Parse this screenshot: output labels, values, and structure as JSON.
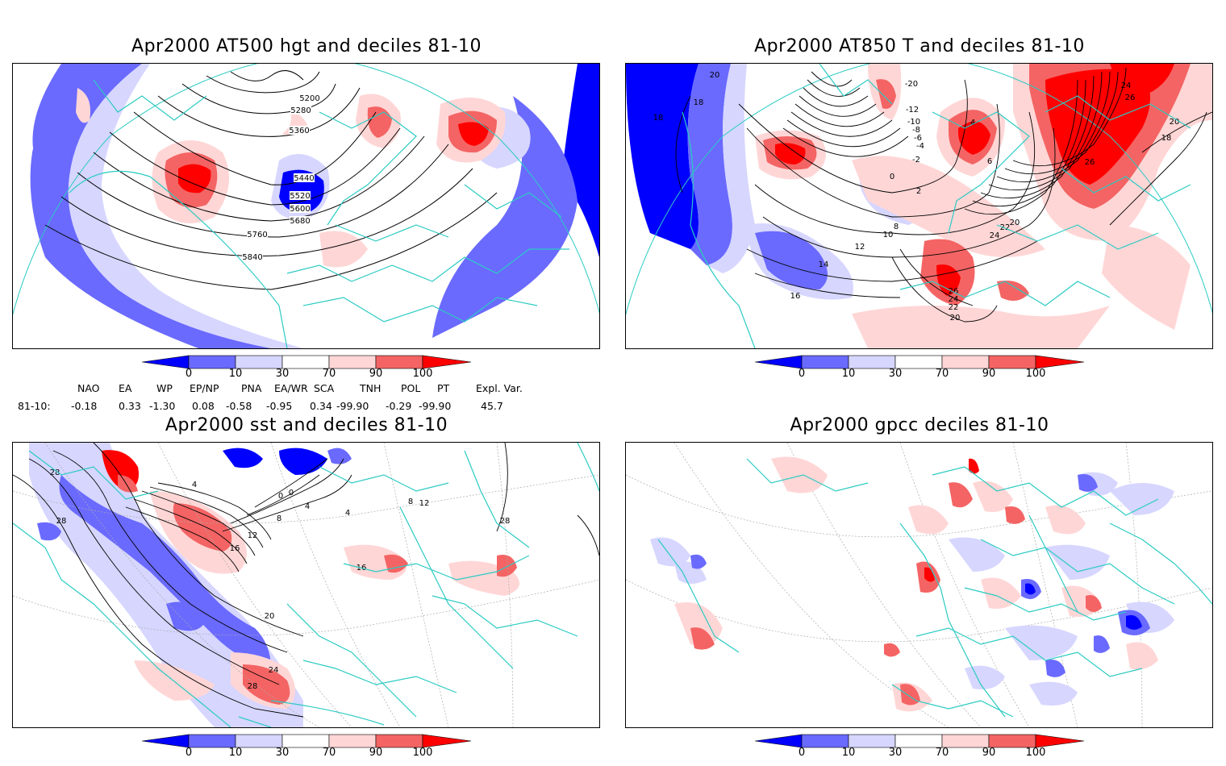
{
  "panels": [
    {
      "title": "Apr2000 AT500 hgt and deciles 81-10",
      "contour_labels": [
        "5200",
        "5280",
        "5360",
        "5440",
        "5520",
        "5600",
        "5680",
        "5760",
        "5840"
      ]
    },
    {
      "title": "Apr2000 AT850 T and deciles 81-10",
      "contour_labels": [
        "20",
        "18",
        "18",
        "-20",
        "-12",
        "-10",
        "-8",
        "-6",
        "-4",
        "-2",
        "0",
        "2",
        "4",
        "6",
        "8",
        "10",
        "12",
        "14",
        "16",
        "20",
        "22",
        "24",
        "26",
        "24",
        "22",
        "20",
        "26",
        "26",
        "24",
        "20",
        "18"
      ]
    },
    {
      "title": "Apr2000 sst and deciles 81-10",
      "contour_labels": [
        "28",
        "28",
        "4",
        "0",
        "0",
        "4",
        "8",
        "12",
        "16",
        "20",
        "24",
        "28",
        "4",
        "16",
        "8",
        "12",
        "28"
      ]
    },
    {
      "title": "Apr2000 gpcc deciles 81-10",
      "contour_labels": []
    }
  ],
  "colorbar": {
    "ticks": [
      "0",
      "10",
      "30",
      "70",
      "90",
      "100"
    ],
    "colors": [
      "#0000ff",
      "#6a6aff",
      "#d6d6ff",
      "#ffffff",
      "#ffd6d6",
      "#f46464",
      "#ff0000"
    ]
  },
  "indices": {
    "headers": [
      "NAO",
      "EA",
      "WP",
      "EP/NP",
      "PNA",
      "EA/WR",
      "SCA",
      "TNH",
      "POL",
      "PT",
      "Expl. Var."
    ],
    "row_label": "81-10:",
    "values": [
      "-0.18",
      "0.33",
      "-1.30",
      "0.08",
      "-0.58",
      "-0.95",
      "0.34",
      "-99.90",
      "-0.29",
      "-99.90",
      "45.7"
    ]
  }
}
